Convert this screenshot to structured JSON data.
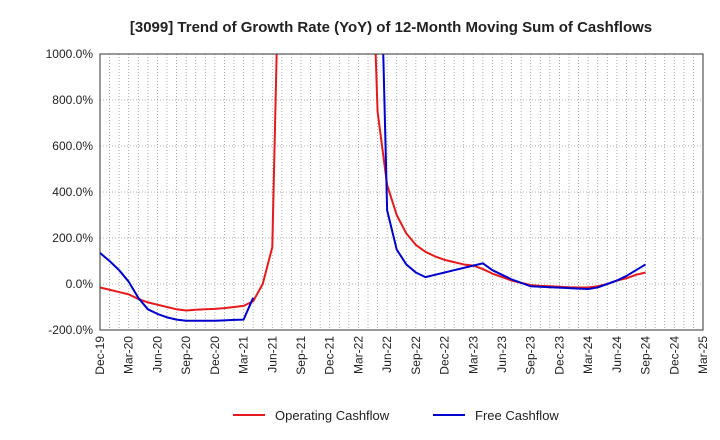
{
  "chart_data": {
    "type": "line",
    "title": "[3099]  Trend of Growth Rate (YoY) of 12-Month Moving Sum of Cashflows",
    "xlabel": "",
    "ylabel": "",
    "ylim": [
      -200,
      1000
    ],
    "y_ticks": [
      "-200.0%",
      "0.0%",
      "200.0%",
      "400.0%",
      "600.0%",
      "800.0%",
      "1000.0%"
    ],
    "y_tick_values": [
      -200,
      0,
      200,
      400,
      600,
      800,
      1000
    ],
    "x_ticks": [
      "Dec-19",
      "Mar-20",
      "Jun-20",
      "Sep-20",
      "Dec-20",
      "Mar-21",
      "Jun-21",
      "Sep-21",
      "Dec-21",
      "Mar-22",
      "Jun-22",
      "Sep-22",
      "Dec-22",
      "Mar-23",
      "Jun-23",
      "Sep-23",
      "Dec-23",
      "Mar-24",
      "Jun-24",
      "Sep-24",
      "Dec-24",
      "Mar-25"
    ],
    "x": [
      "Dec-19",
      "Jan-20",
      "Feb-20",
      "Mar-20",
      "Apr-20",
      "May-20",
      "Jun-20",
      "Jul-20",
      "Aug-20",
      "Sep-20",
      "Oct-20",
      "Nov-20",
      "Dec-20",
      "Jan-21",
      "Feb-21",
      "Mar-21",
      "Apr-21",
      "May-21",
      "Jun-21",
      "Jul-21",
      "Aug-21",
      "Sep-21",
      "Oct-21",
      "Nov-21",
      "Dec-21",
      "Jan-22",
      "Feb-22",
      "Mar-22",
      "Apr-22",
      "May-22",
      "Jun-22",
      "Jul-22",
      "Aug-22",
      "Sep-22",
      "Oct-22",
      "Nov-22",
      "Dec-22",
      "Jan-23",
      "Feb-23",
      "Mar-23",
      "Apr-23",
      "May-23",
      "Jun-23",
      "Jul-23",
      "Aug-23",
      "Sep-23",
      "Oct-23",
      "Nov-23",
      "Dec-23",
      "Jan-24",
      "Feb-24",
      "Mar-24",
      "Apr-24",
      "May-24",
      "Jun-24",
      "Jul-24",
      "Aug-24",
      "Sep-24",
      "Oct-24",
      "Nov-24",
      "Dec-24",
      "Jan-25",
      "Feb-25",
      "Mar-25"
    ],
    "series": [
      {
        "name": "Operating Cashflow",
        "color": "#e41a1c",
        "values": [
          -15,
          -25,
          -35,
          -45,
          -65,
          -80,
          -90,
          -100,
          -110,
          -115,
          -112,
          -110,
          -108,
          -105,
          -100,
          -95,
          -75,
          0,
          160,
          2000,
          null,
          null,
          null,
          null,
          null,
          null,
          null,
          null,
          2000,
          750,
          430,
          300,
          220,
          170,
          140,
          120,
          105,
          95,
          85,
          80,
          65,
          45,
          30,
          15,
          5,
          -5,
          -8,
          -10,
          -12,
          -14,
          -15,
          -15,
          -10,
          0,
          15,
          25,
          40,
          50,
          null,
          null,
          null,
          null,
          null,
          null
        ]
      },
      {
        "name": "Free Cashflow",
        "color": "#0000cc",
        "values": [
          135,
          100,
          60,
          10,
          -60,
          -110,
          -130,
          -145,
          -155,
          -160,
          -160,
          -160,
          -160,
          -158,
          -156,
          -155,
          -60,
          null,
          null,
          null,
          null,
          null,
          null,
          null,
          null,
          null,
          null,
          null,
          null,
          2000,
          320,
          150,
          85,
          50,
          30,
          40,
          50,
          60,
          70,
          80,
          90,
          60,
          40,
          20,
          5,
          -10,
          -12,
          -14,
          -16,
          -18,
          -20,
          -22,
          -15,
          0,
          15,
          35,
          60,
          85,
          null,
          null,
          null,
          null,
          null,
          null
        ]
      }
    ],
    "grid": true,
    "legend_position": "bottom"
  }
}
